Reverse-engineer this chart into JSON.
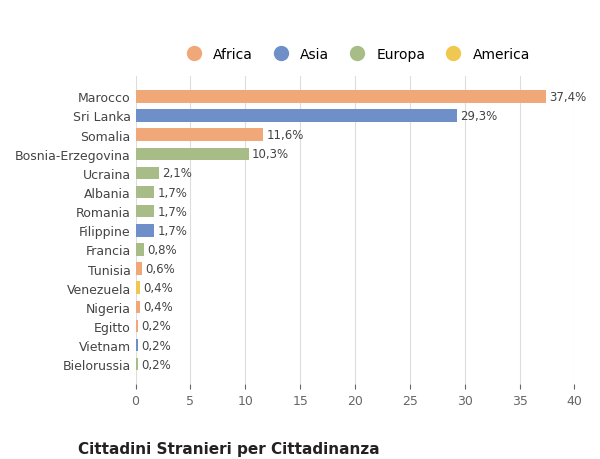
{
  "countries": [
    "Marocco",
    "Sri Lanka",
    "Somalia",
    "Bosnia-Erzegovina",
    "Ucraina",
    "Albania",
    "Romania",
    "Filippine",
    "Francia",
    "Tunisia",
    "Venezuela",
    "Nigeria",
    "Egitto",
    "Vietnam",
    "Bielorussia"
  ],
  "values": [
    37.4,
    29.3,
    11.6,
    10.3,
    2.1,
    1.7,
    1.7,
    1.7,
    0.8,
    0.6,
    0.4,
    0.4,
    0.2,
    0.2,
    0.2
  ],
  "labels": [
    "37,4%",
    "29,3%",
    "11,6%",
    "10,3%",
    "2,1%",
    "1,7%",
    "1,7%",
    "1,7%",
    "0,8%",
    "0,6%",
    "0,4%",
    "0,4%",
    "0,2%",
    "0,2%",
    "0,2%"
  ],
  "continents": [
    "Africa",
    "Asia",
    "Africa",
    "Europa",
    "Europa",
    "Europa",
    "Europa",
    "Asia",
    "Europa",
    "Africa",
    "America",
    "Africa",
    "Africa",
    "Asia",
    "Europa"
  ],
  "continent_colors": {
    "Africa": "#F0A878",
    "Asia": "#6F8FC8",
    "Europa": "#A8BC88",
    "America": "#F0C850"
  },
  "legend_order": [
    "Africa",
    "Asia",
    "Europa",
    "America"
  ],
  "title": "Cittadini Stranieri per Cittadinanza",
  "xlim": [
    0,
    40
  ],
  "xticks": [
    0,
    5,
    10,
    15,
    20,
    25,
    30,
    35,
    40
  ],
  "bg_color": "#ffffff",
  "grid_color": "#dddddd",
  "bar_height": 0.65
}
